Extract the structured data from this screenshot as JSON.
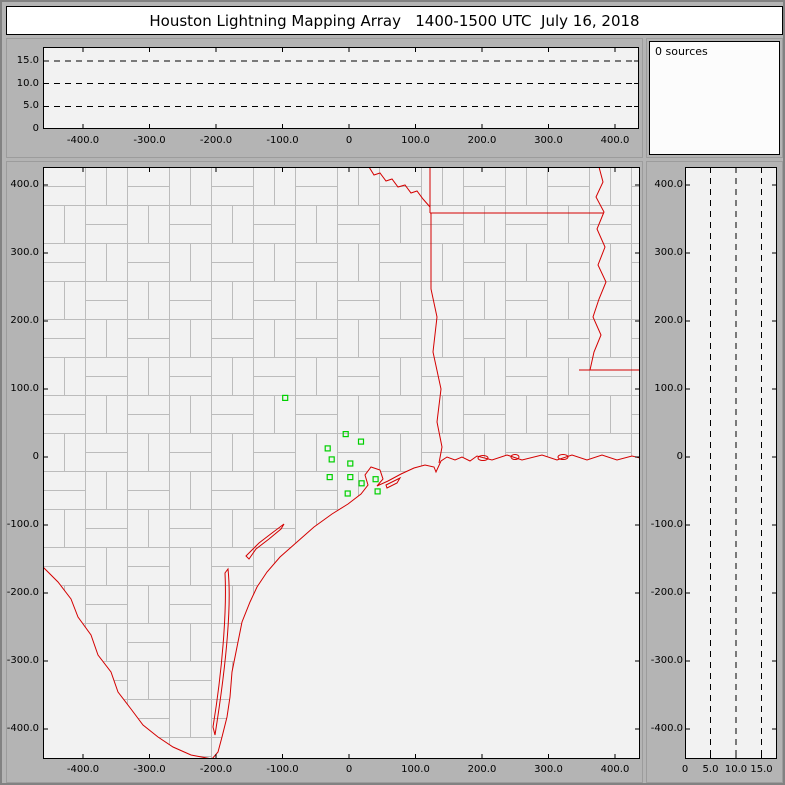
{
  "window": {
    "title": "Houston Lightning Mapping Array   1400-1500 UTC  July 16, 2018"
  },
  "sources_panel": {
    "label": "0 sources"
  },
  "colors": {
    "state_border": "#d40000",
    "county_line": "#bcbcbc",
    "station": "#00d000",
    "plot_bg": "#f2f2f2",
    "frame_bg": "#b4b4b4",
    "axis": "#000000"
  },
  "axes": {
    "east_west_km": {
      "ticks": [
        "-400.0",
        "-300.0",
        "-200.0",
        "-100.0",
        "0",
        "100.0",
        "200.0",
        "300.0",
        "400.0"
      ]
    },
    "north_south_km": {
      "ticks": [
        "400.0",
        "300.0",
        "200.0",
        "100.0",
        "0",
        "-100.0",
        "-200.0",
        "-300.0",
        "-400.0"
      ]
    },
    "altitude_top_km": {
      "ticks": [
        "15.0",
        "10.0",
        "5.0",
        "0"
      ]
    },
    "altitude_right_km": {
      "ticks": [
        "0",
        "5.0",
        "10.0",
        "15.0"
      ]
    }
  },
  "chart_data": [
    {
      "type": "scatter",
      "panel": "altitude_vs_east_west",
      "x_range_km": [
        -460,
        440
      ],
      "alt_range_km": [
        0,
        18
      ],
      "dashed_gridlines_alt_km": [
        5,
        10,
        15
      ],
      "points": []
    },
    {
      "type": "scatter",
      "panel": "plan_view_map",
      "x_range_km": [
        -460,
        440
      ],
      "y_range_km": [
        -440,
        425
      ],
      "points": [],
      "lma_stations_km": [
        [
          -96,
          88
        ],
        [
          -5,
          35
        ],
        [
          -32,
          14
        ],
        [
          18,
          24
        ],
        [
          -26,
          -2
        ],
        [
          2,
          -8
        ],
        [
          -29,
          -28
        ],
        [
          2,
          -28
        ],
        [
          19,
          -37
        ],
        [
          40,
          -31
        ],
        [
          -2,
          -52
        ],
        [
          43,
          -49
        ]
      ],
      "map_features": [
        "gray county boundaries",
        "red state borders",
        "red Gulf of Mexico coastline",
        "red Rio Grande",
        "red barrier islands"
      ]
    },
    {
      "type": "scatter",
      "panel": "altitude_vs_north_south",
      "alt_range_km": [
        0,
        18
      ],
      "y_range_km": [
        -440,
        425
      ],
      "dashed_gridlines_alt_km": [
        5,
        10,
        15
      ],
      "points": []
    }
  ]
}
